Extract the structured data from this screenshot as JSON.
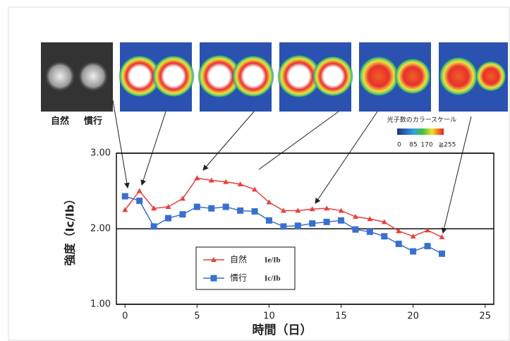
{
  "figure": {
    "image_labels": [
      "自然",
      "慣行"
    ],
    "color_scale_title": "光子数のカラースケール",
    "color_scale_ticks": [
      "0",
      "85",
      "170",
      "≧255"
    ]
  },
  "chart_data": {
    "type": "line",
    "x": [
      0,
      1,
      2,
      3,
      4,
      5,
      6,
      7,
      8,
      9,
      10,
      11,
      12,
      13,
      14,
      15,
      16,
      17,
      18,
      19,
      20,
      21,
      22
    ],
    "series": [
      {
        "name": "自然",
        "legend_label": "Ie/Ib",
        "color": "#e8403c",
        "marker": "triangle",
        "values": [
          2.25,
          2.5,
          2.27,
          2.29,
          2.4,
          2.67,
          2.64,
          2.62,
          2.59,
          2.52,
          2.35,
          2.24,
          2.24,
          2.26,
          2.27,
          2.24,
          2.16,
          2.13,
          2.09,
          1.97,
          1.9,
          1.98,
          1.89
        ]
      },
      {
        "name": "慣行",
        "legend_label": "Ic/Ib",
        "color": "#3a6fd0",
        "marker": "square",
        "values": [
          2.43,
          2.37,
          2.03,
          2.14,
          2.19,
          2.29,
          2.27,
          2.29,
          2.24,
          2.23,
          2.11,
          2.03,
          2.04,
          2.07,
          2.09,
          2.11,
          1.99,
          1.96,
          1.9,
          1.8,
          1.7,
          1.77,
          1.67
        ]
      }
    ],
    "xlim": [
      -0.6,
      25.6
    ],
    "xticks": [
      0,
      5,
      10,
      15,
      20,
      25
    ],
    "ylim": [
      1,
      3
    ],
    "yticks": [
      {
        "value": 1,
        "label": "1.00"
      },
      {
        "value": 2,
        "label": "2.00"
      },
      {
        "value": 3,
        "label": "3.00"
      }
    ],
    "grid": true,
    "xlabel": "時間（日）",
    "ylabel": "強度（Ic/Ib）"
  }
}
